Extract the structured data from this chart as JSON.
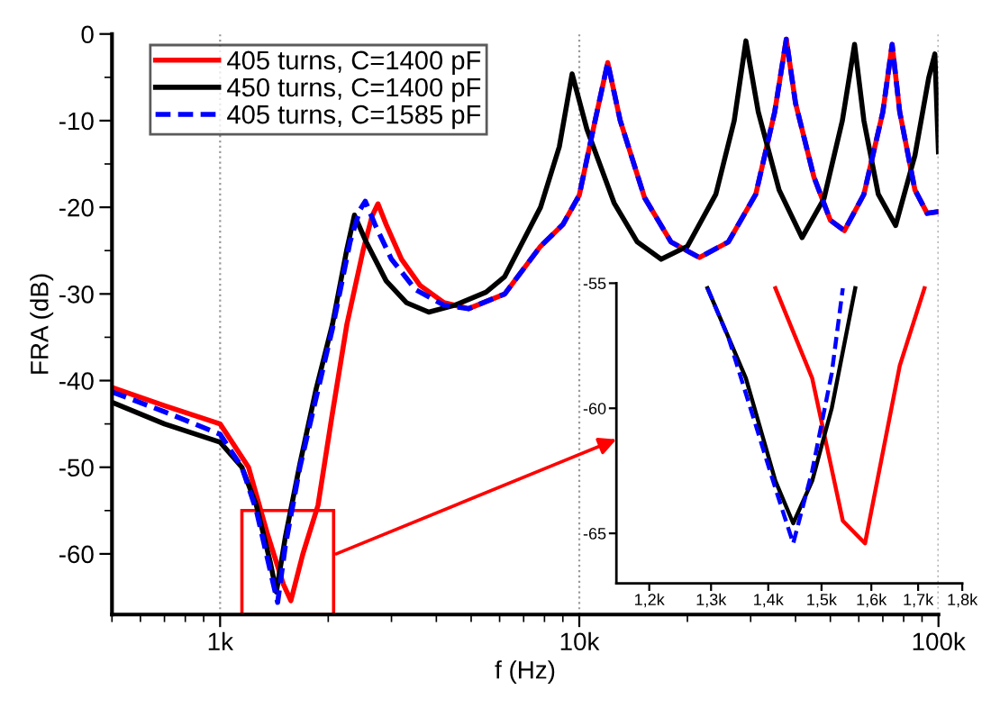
{
  "chart_data": [
    {
      "type": "line",
      "xlabel": "f (Hz)",
      "ylabel": "FRA (dB)",
      "log": "x",
      "xlim": [
        500,
        100000
      ],
      "xticks": [
        {
          "value": 1000,
          "label": "1k"
        },
        {
          "value": 10000,
          "label": "10k"
        },
        {
          "value": 100000,
          "label": "100k"
        }
      ],
      "ylim": [
        -67,
        0
      ],
      "yticks": [
        -60,
        -50,
        -40,
        -30,
        -20,
        -10,
        0
      ],
      "grid": "x",
      "legend": "top left",
      "marker": "none",
      "series": [
        {
          "name": "405 turns, C=1400 pF",
          "color": "#ff0000",
          "line_style": "solid",
          "x": [
            500,
            700,
            1000,
            1200,
            1350,
            1500,
            1574,
            1700,
            1873,
            2050,
            2254,
            2500,
            2650,
            2751,
            2900,
            3200,
            3600,
            4200,
            4920,
            6200,
            7800,
            9000,
            10000,
            11000,
            12000,
            13000,
            15200,
            18000,
            21600,
            26000,
            31000,
            35000,
            37700,
            40000,
            45000,
            50000,
            54700,
            62000,
            70000,
            74300,
            78000,
            86000,
            93000,
            100000
          ],
          "values": [
            -40.8,
            -42.9,
            -45,
            -50,
            -57.5,
            -63.5,
            -65.4,
            -60,
            -54.4,
            -44,
            -33.5,
            -25,
            -21,
            -19.6,
            -22,
            -26,
            -29,
            -31,
            -31.7,
            -30,
            -24.5,
            -22,
            -18.6,
            -10.5,
            -3.3,
            -10,
            -18.9,
            -24,
            -25.8,
            -24,
            -18.5,
            -9,
            -0.6,
            -8,
            -16.5,
            -21.5,
            -22.7,
            -18.5,
            -9,
            -1.2,
            -9,
            -18,
            -20.7,
            -20.5
          ]
        },
        {
          "name": "450 turns, C=1400 pF",
          "color": "#000000",
          "line_style": "solid",
          "x": [
            500,
            700,
            1000,
            1150,
            1262,
            1380,
            1434,
            1520,
            1668,
            1850,
            2055,
            2250,
            2366,
            2550,
            2900,
            3300,
            3810,
            4500,
            5500,
            6200,
            7800,
            8800,
            9550,
            10500,
            12500,
            14500,
            16900,
            20000,
            24000,
            27000,
            29100,
            31500,
            36000,
            41700,
            48000,
            54000,
            58400,
            62000,
            68000,
            76000,
            86000,
            94000,
            97700,
            100000
          ],
          "values": [
            -42.5,
            -45,
            -47.1,
            -50,
            -54.4,
            -61,
            -64.4,
            -58,
            -49.6,
            -41,
            -33.5,
            -25,
            -20.9,
            -24,
            -28.5,
            -31,
            -32.1,
            -31.3,
            -29.8,
            -28,
            -20,
            -13,
            -4.6,
            -11,
            -19.5,
            -24,
            -26,
            -24.5,
            -18.5,
            -10,
            -0.8,
            -9,
            -18,
            -23.5,
            -19,
            -10,
            -1.2,
            -10,
            -18.5,
            -22.1,
            -14,
            -5,
            -2.3,
            -13.6
          ]
        },
        {
          "name": "405 turns, C=1585 pF",
          "color": "#0000ff",
          "line_style": "dashed",
          "x": [
            500,
            700,
            1000,
            1150,
            1262,
            1380,
            1446,
            1520,
            1668,
            1850,
            2055,
            2300,
            2450,
            2536,
            2700,
            3000,
            3500,
            4200,
            4920,
            6200,
            7800,
            9000,
            10000,
            11000,
            12000,
            13000,
            15200,
            18000,
            21600,
            26000,
            31000,
            35000,
            37700,
            40000,
            45000,
            50000,
            54700,
            62000,
            70000,
            74300,
            78000,
            86000,
            93000,
            100000
          ],
          "values": [
            -41.3,
            -43.6,
            -46.2,
            -50,
            -55,
            -62,
            -65.6,
            -59,
            -50,
            -42,
            -34,
            -24,
            -20.3,
            -19.3,
            -22,
            -26,
            -29.5,
            -31.3,
            -31.7,
            -30,
            -24.5,
            -22,
            -18.6,
            -10.5,
            -3.3,
            -10,
            -18.9,
            -24,
            -25.8,
            -24,
            -18.5,
            -9,
            -0.6,
            -8,
            -16.5,
            -21.5,
            -22.7,
            -18.5,
            -9,
            -1.2,
            -9,
            -18,
            -20.7,
            -20.5
          ]
        }
      ]
    },
    {
      "type": "line",
      "log": "x",
      "xlim": [
        1150,
        1800
      ],
      "xticks": [
        {
          "value": 1200,
          "label": "1,2k"
        },
        {
          "value": 1300,
          "label": "1,3k"
        },
        {
          "value": 1400,
          "label": "1,4k"
        },
        {
          "value": 1500,
          "label": "1,5k"
        },
        {
          "value": 1600,
          "label": "1,6k"
        },
        {
          "value": 1700,
          "label": "1,7k"
        },
        {
          "value": 1800,
          "label": "1,8k"
        }
      ],
      "ylim": [
        -67,
        -55
      ],
      "yticks": [
        -65,
        -60,
        -55
      ],
      "marker": "none",
      "series": [
        {
          "color": "#ff0000",
          "line_style": "solid",
          "x": [
            1413,
            1482,
            1542,
            1587,
            1660,
            1714
          ],
          "values": [
            -55.2,
            -58.8,
            -64.5,
            -65.4,
            -58.3,
            -55.2
          ]
        },
        {
          "color": "#000000",
          "line_style": "solid",
          "x": [
            1294,
            1360,
            1413,
            1446,
            1482,
            1520,
            1567
          ],
          "values": [
            -55.2,
            -58.8,
            -62.9,
            -64.6,
            -62.9,
            -60.0,
            -55.2
          ]
        },
        {
          "color": "#0000ff",
          "line_style": "dashed",
          "x": [
            1294,
            1330,
            1413,
            1446,
            1482,
            1520,
            1542
          ],
          "values": [
            -55.2,
            -57.2,
            -63.2,
            -65.4,
            -62.5,
            -58.6,
            -55.2
          ]
        }
      ]
    }
  ]
}
